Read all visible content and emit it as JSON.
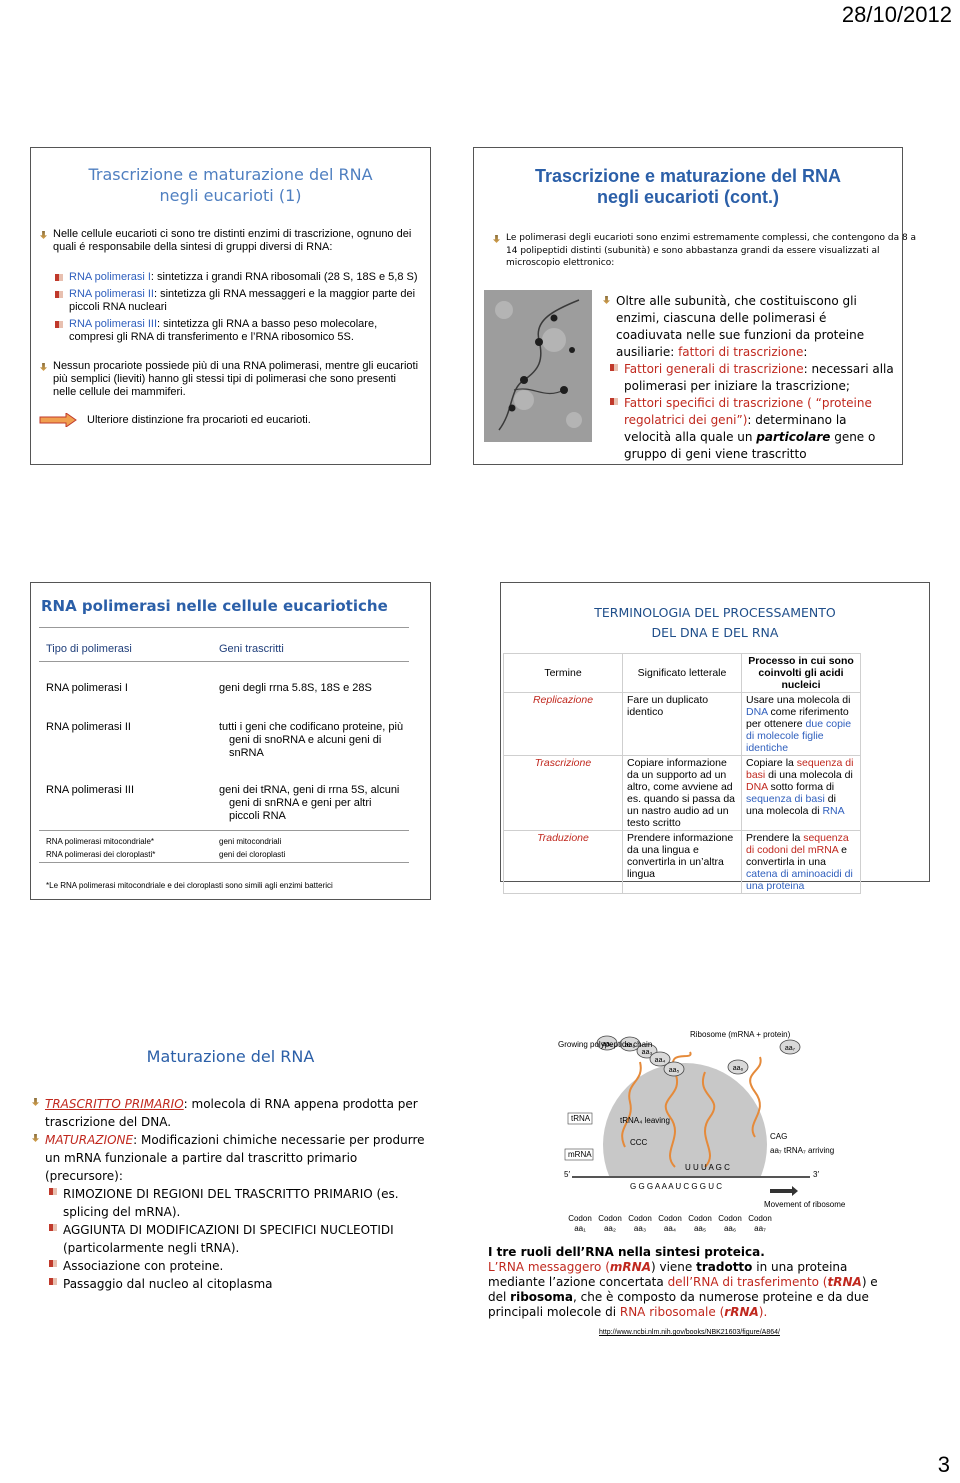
{
  "header": {
    "date": "28/10/2012"
  },
  "slides": [
    {
      "title": [
        "Trascrizione e maturazione del RNA",
        "negli eucarioti (1)"
      ],
      "intro": "Nelle cellule eucarioti ci sono tre distinti enzimi di trascrizione, ognuno dei quali é responsabile della sintesi di gruppi diversi di RNA:",
      "items": [
        {
          "name": "RNA polimerasi I",
          "text": ": sintetizza i grandi RNA ribosomali (28 S, 18S e 5,8 S)"
        },
        {
          "name": "RNA polimerasi II",
          "text": ": sintetizza gli RNA messaggeri e la maggior parte dei piccoli RNA nucleari"
        },
        {
          "name": "RNA polimerasi III",
          "text": ": sintetizza gli RNA a basso peso molecolare, compresi gli RNA di transferimento e l’RNA ribosomico 5S."
        }
      ],
      "paragraph": "Nessun procariote possiede più di una RNA polimerasi, mentre gli eucarioti più semplici (lieviti) hanno gli stessi tipi di polimerasi che sono presenti nelle cellule dei mammiferi.",
      "note": "Ulteriore distinzione fra procarioti ed eucarioti."
    },
    {
      "title": [
        "Trascrizione e maturazione del RNA",
        "negli eucarioti (cont.)"
      ],
      "intro": "Le polimerasi degli eucarioti sono enzimi estremamente complessi, che contengono da 8 a 14 polipeptidi distinti (subunità) e sono abbastanza grandi da essere visualizzati al microscopio elettronico:",
      "main": [
        "Oltre alle subunità, che costituiscono gli enzimi, ciascuna delle polimerasi é coadiuvata nelle sue funzioni da proteine ausiliarie: ",
        "fattori di trascrizione",
        ":"
      ],
      "items": [
        [
          "Fattori generali di trascrizione",
          ": necessari alla polimerasi per iniziare la trascrizione;"
        ],
        [
          "Fattori specifici di trascrizione ( “proteine regolatrici dei geni”)",
          ": determinano la velocità alla quale un ",
          "particolare",
          " gene o gruppo di geni viene trascritto"
        ]
      ]
    },
    {
      "title": "RNA polimerasi nelle cellule eucariotiche",
      "table": {
        "header": [
          "Tipo di polimerasi",
          "Geni trascritti"
        ],
        "rows": [
          [
            "RNA polimerasi I",
            "geni degli rrna 5.8S, 18S e 28S"
          ],
          [
            "RNA polimerasi II",
            "tutti i geni che codificano proteine, più geni di snoRNA e alcuni geni di snRNA"
          ],
          [
            "RNA polimerasi III",
            "geni dei tRNA, geni di rrna 5S, alcuni geni di snRNA e geni per altri piccoli RNA"
          ],
          [
            "RNA polimerasi mitocondriale*",
            "geni mitocondriali"
          ],
          [
            "RNA polimerasi dei cloroplasti*",
            "geni dei cloroplasti"
          ]
        ]
      },
      "footnote": "*Le RNA polimerasi mitocondriale e dei cloroplasti sono simili agli enzimi batterici"
    },
    {
      "title": [
        "TERMINOLOGIA DEL PROCESSAMENTO",
        "DEL DNA E DEL RNA"
      ],
      "table": {
        "header": [
          "Termine",
          "Significato letterale",
          "Processo in cui sono coinvolti gli acidi nucleici"
        ],
        "rows": [
          {
            "term": "Replicazione",
            "meaning": "Fare un duplicato identico",
            "process": [
              "Usare una molecola di ",
              "DNA",
              " come riferimento per ottenere ",
              "due copie di molecole figlie identiche"
            ]
          },
          {
            "term": "Trascrizione",
            "meaning": "Copiare informazione da un supporto ad un altro, come avviene ad es. quando si passa da un nastro audio ad un testo scritto",
            "process": [
              "Copiare la ",
              "sequenza di basi",
              " di una molecola di ",
              "DNA",
              " sotto forma di ",
              "sequenza di basi",
              " di una molecola di ",
              "RNA"
            ]
          },
          {
            "term": "Traduzione",
            "meaning": "Prendere informazione da una lingua e convertirla in un’altra lingua",
            "process": [
              "Prendere la ",
              "sequenza di codoni del mRNA",
              " e convertirla in una ",
              "catena di aminoacidi di una proteina"
            ]
          }
        ]
      }
    },
    {
      "title": "Maturazione del RNA",
      "items": [
        [
          "TRASCRITTO PRIMARIO",
          ": molecola di RNA appena prodotta per trascrizione del DNA."
        ],
        [
          "MATURAZIONE",
          ": Modificazioni chimiche necessarie per produrre un mRNA funzionale a partire dal trascritto primario (precursore):"
        ]
      ],
      "subitems": [
        "RIMOZIONE DI REGIONI DEL TRASCRITTO PRIMARIO (es. splicing del mRNA).",
        "AGGIUNTA DI MODIFICAZIONI DI SPECIFICI NUCLEOTIDI (particolarmente negli tRNA).",
        "Associazione con proteine.",
        "Passaggio dal nucleo al citoplasma"
      ]
    },
    {
      "diagram": {
        "chain_label": "Growing polypeptide chain",
        "ribosome": "Ribosome (mRNA + protein)",
        "chain": [
          "aa₁",
          "aa₂",
          "aa₃",
          "aa₄",
          "aa₅",
          "aa₆",
          "aa₇"
        ],
        "trna": "tRNA",
        "mrna": "mRNA",
        "leaving": "tRNA₄ leaving",
        "anticodon_leaving": "CCC",
        "anticodon_arriving": "CAG",
        "arriving": "aa₇ tRNA₇ arriving",
        "upper_seq": "U U U A G C",
        "sequence": "G G G A A A U C G G U C",
        "five": "5′",
        "three": "3′",
        "movement": "Movement of ribosome",
        "codons": [
          {
            "label": "Codon",
            "aa": "aa₁"
          },
          {
            "label": "Codon",
            "aa": "aa₂"
          },
          {
            "label": "Codon",
            "aa": "aa₃"
          },
          {
            "label": "Codon",
            "aa": "aa₄"
          },
          {
            "label": "Codon",
            "aa": "aa₅"
          },
          {
            "label": "Codon",
            "aa": "aa₆"
          },
          {
            "label": "Codon",
            "aa": "aa₇"
          }
        ]
      },
      "caption_title": "I tre ruoli dell’RNA nella sintesi proteica.",
      "caption": [
        "L’RNA messaggero (",
        "mRNA",
        ") viene ",
        "tradotto",
        " in una proteina mediante l’azione concertata ",
        "dell’RNA di trasferimento (",
        "tRNA",
        ") e del ",
        "ribosoma",
        ", che è composto da numerose proteine e da due principali molecole di ",
        "RNA ribosomale (",
        "rRNA",
        ")."
      ],
      "url": "http://www.ncbi.nlm.nih.gov/books/NBK21603/figure/A864/"
    }
  ],
  "footer": {
    "page": "3"
  }
}
